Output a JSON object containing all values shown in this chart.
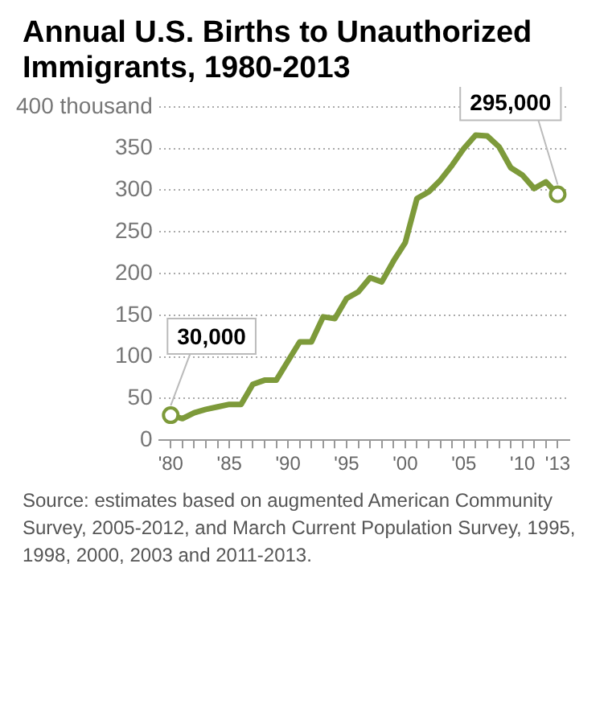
{
  "chart_data": {
    "type": "line",
    "title": "Annual U.S. Births to Unauthorized Immigrants, 1980-2013",
    "x": [
      1980,
      1981,
      1982,
      1983,
      1984,
      1985,
      1986,
      1987,
      1988,
      1989,
      1990,
      1991,
      1992,
      1993,
      1994,
      1995,
      1996,
      1997,
      1998,
      1999,
      2000,
      2001,
      2002,
      2003,
      2004,
      2005,
      2006,
      2007,
      2008,
      2009,
      2010,
      2011,
      2012,
      2013
    ],
    "series": [
      {
        "color": "#7d9a3a",
        "values": [
          30,
          26,
          33,
          37,
          40,
          43,
          43,
          67,
          72,
          72,
          95,
          118,
          118,
          148,
          146,
          170,
          178,
          195,
          190,
          215,
          237,
          290,
          298,
          312,
          330,
          350,
          366,
          365,
          352,
          327,
          318,
          302,
          310,
          295
        ]
      }
    ],
    "xlim": [
      1979,
      2014
    ],
    "xticks": [
      {
        "value": 1980,
        "label": "'80"
      },
      {
        "value": 1981,
        "label": null
      },
      {
        "value": 1982,
        "label": null
      },
      {
        "value": 1983,
        "label": null
      },
      {
        "value": 1984,
        "label": null
      },
      {
        "value": 1985,
        "label": "'85"
      },
      {
        "value": 1986,
        "label": null
      },
      {
        "value": 1987,
        "label": null
      },
      {
        "value": 1988,
        "label": null
      },
      {
        "value": 1989,
        "label": null
      },
      {
        "value": 1990,
        "label": "'90"
      },
      {
        "value": 1991,
        "label": null
      },
      {
        "value": 1992,
        "label": null
      },
      {
        "value": 1993,
        "label": null
      },
      {
        "value": 1994,
        "label": null
      },
      {
        "value": 1995,
        "label": "'95"
      },
      {
        "value": 1996,
        "label": null
      },
      {
        "value": 1997,
        "label": null
      },
      {
        "value": 1998,
        "label": null
      },
      {
        "value": 1999,
        "label": null
      },
      {
        "value": 2000,
        "label": "'00"
      },
      {
        "value": 2001,
        "label": null
      },
      {
        "value": 2002,
        "label": null
      },
      {
        "value": 2003,
        "label": null
      },
      {
        "value": 2004,
        "label": null
      },
      {
        "value": 2005,
        "label": "'05"
      },
      {
        "value": 2006,
        "label": null
      },
      {
        "value": 2007,
        "label": null
      },
      {
        "value": 2008,
        "label": null
      },
      {
        "value": 2009,
        "label": null
      },
      {
        "value": 2010,
        "label": "'10"
      },
      {
        "value": 2011,
        "label": null
      },
      {
        "value": 2012,
        "label": null
      },
      {
        "value": 2013,
        "label": "'13"
      }
    ],
    "ylim": [
      0,
      400
    ],
    "yticks": [
      0,
      50,
      100,
      150,
      200,
      250,
      300,
      350,
      {
        "value": 400,
        "label": "400 thousand"
      }
    ],
    "grid": "y",
    "legend": false,
    "marker": "none",
    "line_style": "solid",
    "annotations": [
      {
        "text": "30,000",
        "x": 1980,
        "y": 30
      },
      {
        "text": "295,000",
        "x": 2013,
        "y": 295
      },
      "Source: estimates based on augmented American Community Survey, 2005-2012, and March Current Population Survey, 1995, 1998, 2000, 2003 and 2011-2013."
    ]
  }
}
